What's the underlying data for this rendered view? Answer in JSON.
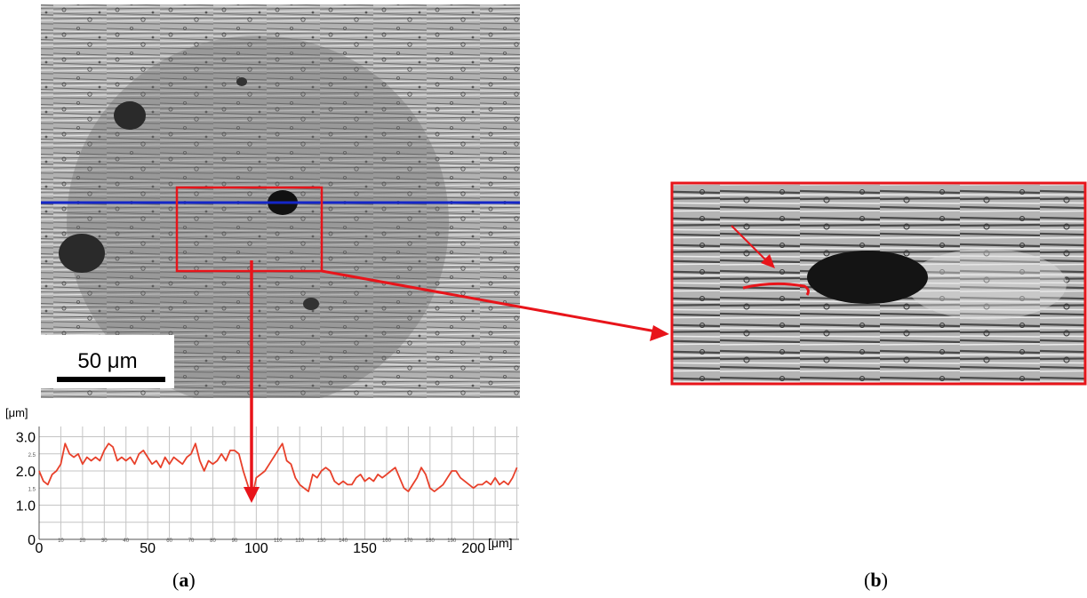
{
  "figure": {
    "panel_a": {
      "scale_bar": {
        "label": "50 μm"
      },
      "profile": {
        "unit_label_y": "[μm]",
        "unit_label_x": "[μm]",
        "y_ticks": [
          "0",
          "1.0",
          "2.0",
          "3.0"
        ],
        "y_minor_ticks": [
          "1.5",
          "2.5"
        ],
        "x_ticks": [
          "0",
          "50",
          "100",
          "150",
          "200"
        ],
        "x_minor_ticks": [
          "10",
          "20",
          "30",
          "40",
          "60",
          "70",
          "80",
          "90",
          "110",
          "120",
          "130",
          "140",
          "160",
          "170",
          "180",
          "190"
        ]
      },
      "caption": {
        "open": "(",
        "letter": "a",
        "close": ")"
      }
    },
    "panel_b": {
      "caption": {
        "open": "(",
        "letter": "b",
        "close": ")"
      }
    },
    "colors": {
      "highlight": "#e8141a",
      "line_cut": "#1426c8",
      "profile": "#e8402a"
    }
  },
  "chart_data": {
    "type": "line",
    "xlabel": "[μm]",
    "ylabel": "[μm]",
    "xlim": [
      0,
      221
    ],
    "ylim": [
      0,
      3.3
    ],
    "grid": true,
    "x": [
      0,
      2,
      4,
      6,
      8,
      10,
      12,
      14,
      16,
      18,
      20,
      22,
      24,
      26,
      28,
      30,
      32,
      34,
      36,
      38,
      40,
      42,
      44,
      46,
      48,
      50,
      52,
      54,
      56,
      58,
      60,
      62,
      64,
      66,
      68,
      70,
      72,
      74,
      76,
      78,
      80,
      82,
      84,
      86,
      88,
      90,
      92,
      94,
      96,
      98,
      100,
      102,
      104,
      106,
      108,
      110,
      112,
      114,
      116,
      118,
      120,
      122,
      124,
      126,
      128,
      130,
      132,
      134,
      136,
      138,
      140,
      142,
      144,
      146,
      148,
      150,
      152,
      154,
      156,
      158,
      160,
      162,
      164,
      166,
      168,
      170,
      172,
      174,
      176,
      178,
      180,
      182,
      184,
      186,
      188,
      190,
      192,
      194,
      196,
      198,
      200,
      202,
      204,
      206,
      208,
      210,
      212,
      214,
      216,
      218,
      220
    ],
    "y": [
      2.0,
      1.7,
      1.6,
      1.9,
      2.0,
      2.2,
      2.8,
      2.5,
      2.4,
      2.5,
      2.2,
      2.4,
      2.3,
      2.4,
      2.3,
      2.6,
      2.8,
      2.7,
      2.3,
      2.4,
      2.3,
      2.4,
      2.2,
      2.5,
      2.6,
      2.4,
      2.2,
      2.3,
      2.1,
      2.4,
      2.2,
      2.4,
      2.3,
      2.2,
      2.4,
      2.5,
      2.8,
      2.3,
      2.0,
      2.3,
      2.2,
      2.3,
      2.5,
      2.3,
      2.6,
      2.6,
      2.5,
      2.0,
      1.6,
      1.2,
      1.8,
      1.9,
      2.0,
      2.2,
      2.4,
      2.6,
      2.8,
      2.3,
      2.2,
      1.8,
      1.6,
      1.5,
      1.4,
      1.9,
      1.8,
      2.0,
      2.1,
      2.0,
      1.7,
      1.6,
      1.7,
      1.6,
      1.6,
      1.8,
      1.9,
      1.7,
      1.8,
      1.7,
      1.9,
      1.8,
      1.9,
      2.0,
      2.1,
      1.8,
      1.5,
      1.4,
      1.6,
      1.8,
      2.1,
      1.9,
      1.5,
      1.4,
      1.5,
      1.6,
      1.8,
      2.0,
      2.0,
      1.8,
      1.7,
      1.6,
      1.5,
      1.6,
      1.6,
      1.7,
      1.6,
      1.8,
      1.6,
      1.7,
      1.6,
      1.8,
      2.1
    ]
  }
}
